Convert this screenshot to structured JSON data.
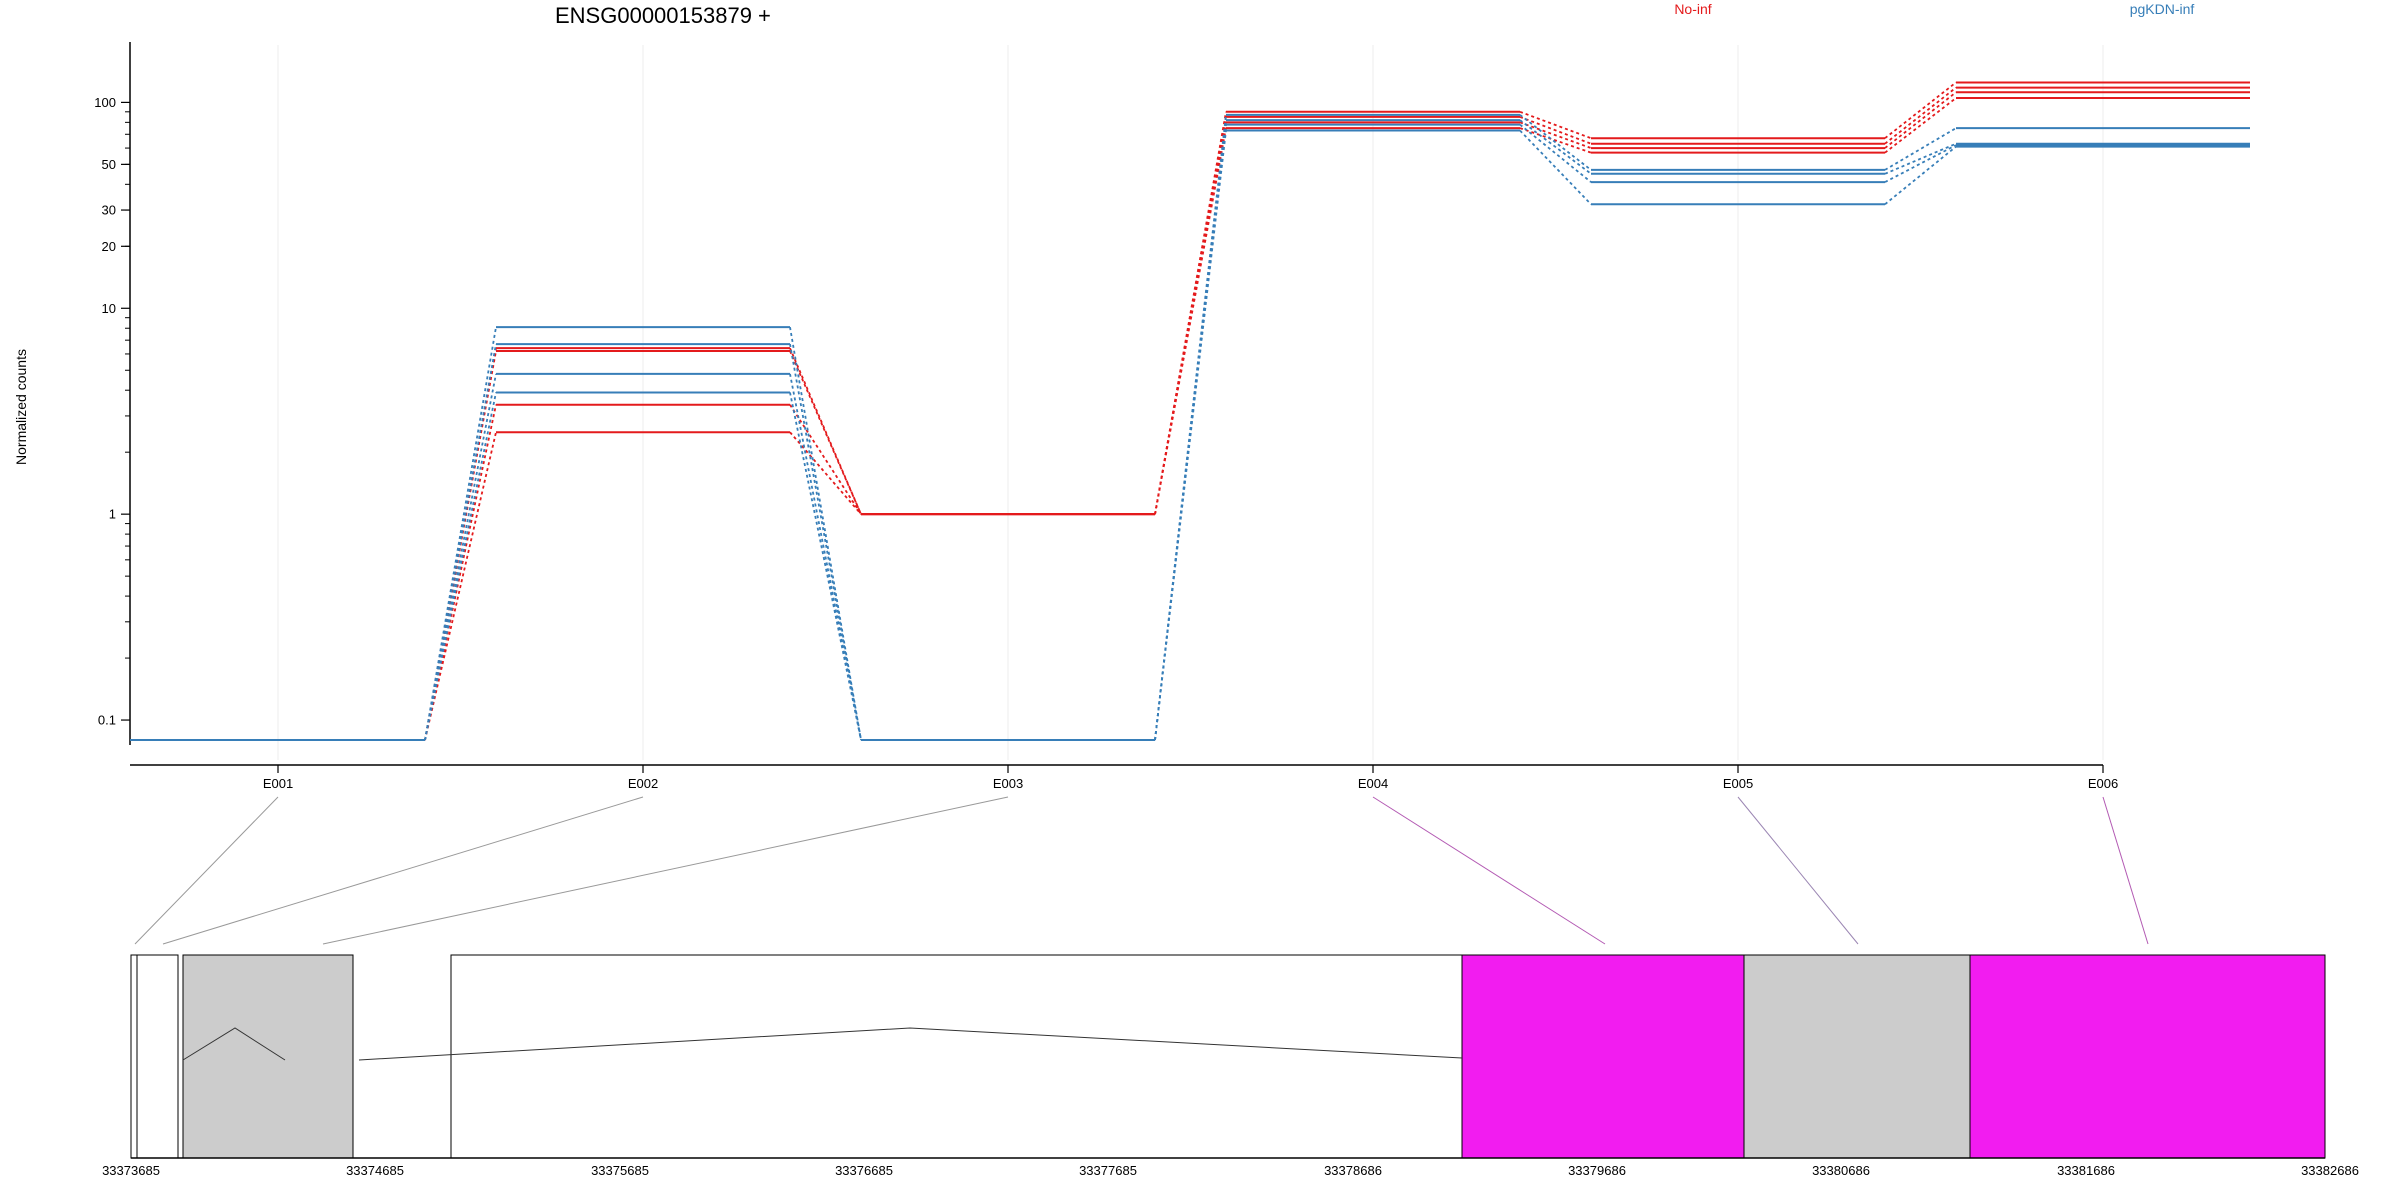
{
  "chart_data": {
    "type": "line",
    "title": "ENSG00000153879 +",
    "ylabel": "Normalized counts",
    "yscale": "log",
    "yticks": [
      "0.1",
      "1",
      "10",
      "20",
      "30",
      "50",
      "100"
    ],
    "categories": [
      "E001",
      "E002",
      "E003",
      "E004",
      "E005",
      "E006"
    ],
    "legend": [
      {
        "label": "No-inf",
        "color": "#e41a1c"
      },
      {
        "label": "pgKDN-inf",
        "color": "#377eb8"
      }
    ],
    "series": [
      {
        "group": "No-inf",
        "color": "#e41a1c",
        "values": [
          0.08,
          6.2,
          1,
          90,
          67,
          125
        ]
      },
      {
        "group": "No-inf",
        "color": "#e41a1c",
        "values": [
          0.08,
          6.4,
          1,
          85,
          63,
          118
        ]
      },
      {
        "group": "No-inf",
        "color": "#e41a1c",
        "values": [
          0.08,
          3.4,
          1,
          80,
          60,
          112
        ]
      },
      {
        "group": "No-inf",
        "color": "#e41a1c",
        "values": [
          0.08,
          2.5,
          1,
          75,
          57,
          105
        ]
      },
      {
        "group": "pgKDN-inf",
        "color": "#377eb8",
        "values": [
          0.08,
          8.1,
          0.08,
          87,
          47,
          75
        ]
      },
      {
        "group": "pgKDN-inf",
        "color": "#377eb8",
        "values": [
          0.08,
          6.7,
          0.08,
          82,
          45,
          63
        ]
      },
      {
        "group": "pgKDN-inf",
        "color": "#377eb8",
        "values": [
          0.08,
          4.8,
          0.08,
          78,
          41,
          62
        ]
      },
      {
        "group": "pgKDN-inf",
        "color": "#377eb8",
        "values": [
          0.08,
          3.9,
          0.08,
          73,
          32,
          61
        ]
      }
    ],
    "gene_model": {
      "coordinates": [
        "33373685",
        "33374685",
        "33375685",
        "33376685",
        "33377685",
        "33378686",
        "33379686",
        "33380686",
        "33381686",
        "33382686"
      ],
      "exon_colors": [
        "#ffffff",
        "#cccccc",
        "#ffffff",
        "#f21cf0",
        "#cccccc",
        "#f21cf0"
      ],
      "connector_colors": [
        "#999999",
        "#999999",
        "#999999",
        "#b35ab3",
        "#9b86b3",
        "#b35ab3"
      ]
    }
  }
}
